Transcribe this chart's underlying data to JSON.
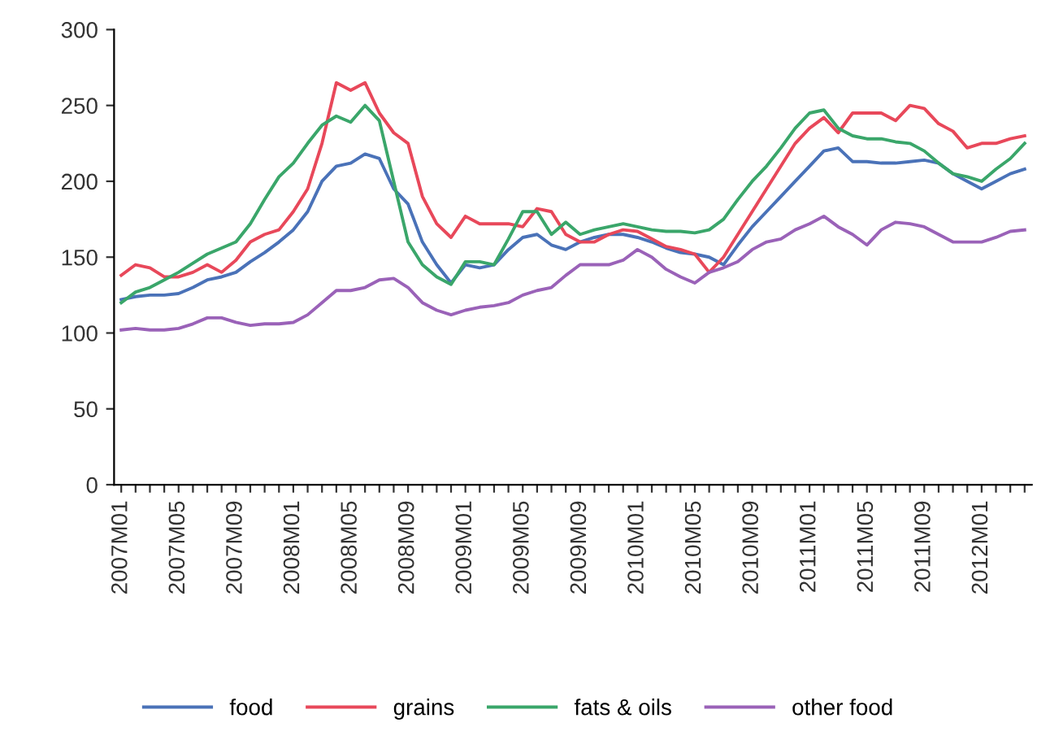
{
  "chart_data": {
    "type": "line",
    "categories": [
      "2007M01",
      null,
      null,
      null,
      "2007M05",
      null,
      null,
      null,
      "2007M09",
      null,
      null,
      null,
      "2008M01",
      null,
      null,
      null,
      "2008M05",
      null,
      null,
      null,
      "2008M09",
      null,
      null,
      null,
      "2009M01",
      null,
      null,
      null,
      "2009M05",
      null,
      null,
      null,
      "2009M09",
      null,
      null,
      null,
      "2010M01",
      null,
      null,
      null,
      "2010M05",
      null,
      null,
      null,
      "2010M09",
      null,
      null,
      null,
      "2011M01",
      null,
      null,
      null,
      "2011M05",
      null,
      null,
      null,
      "2011M09",
      null,
      null,
      null,
      "2012M01",
      null,
      null,
      null
    ],
    "series": [
      {
        "name": "food",
        "color": "#4a72b8",
        "values": [
          122,
          124,
          125,
          125,
          126,
          130,
          135,
          137,
          140,
          147,
          153,
          160,
          168,
          180,
          200,
          210,
          212,
          218,
          215,
          195,
          185,
          160,
          145,
          133,
          145,
          143,
          145,
          155,
          163,
          165,
          158,
          155,
          160,
          163,
          165,
          165,
          163,
          160,
          156,
          153,
          152,
          150,
          145,
          158,
          170,
          180,
          190,
          200,
          210,
          220,
          222,
          213,
          213,
          212,
          212,
          213,
          214,
          212,
          205,
          200,
          195,
          200,
          205,
          208
        ]
      },
      {
        "name": "grains",
        "color": "#e8485a",
        "values": [
          138,
          145,
          143,
          137,
          137,
          140,
          145,
          140,
          148,
          160,
          165,
          168,
          180,
          195,
          225,
          265,
          260,
          265,
          245,
          232,
          225,
          190,
          172,
          163,
          177,
          172,
          172,
          172,
          170,
          182,
          180,
          165,
          160,
          160,
          165,
          168,
          167,
          162,
          157,
          155,
          152,
          140,
          150,
          165,
          180,
          195,
          210,
          225,
          235,
          242,
          232,
          245,
          245,
          245,
          240,
          250,
          248,
          238,
          233,
          222,
          225,
          225,
          228,
          230
        ]
      },
      {
        "name": "fats & oils",
        "color": "#3aa66a",
        "values": [
          120,
          127,
          130,
          135,
          140,
          146,
          152,
          156,
          160,
          172,
          188,
          203,
          212,
          225,
          237,
          243,
          239,
          250,
          240,
          200,
          160,
          145,
          137,
          132,
          147,
          147,
          145,
          162,
          180,
          180,
          165,
          173,
          165,
          168,
          170,
          172,
          170,
          168,
          167,
          167,
          166,
          168,
          175,
          188,
          200,
          210,
          222,
          235,
          245,
          247,
          235,
          230,
          228,
          228,
          226,
          225,
          220,
          212,
          205,
          203,
          200,
          208,
          215,
          225
        ]
      },
      {
        "name": "other food",
        "color": "#9a62b8",
        "values": [
          102,
          103,
          102,
          102,
          103,
          106,
          110,
          110,
          107,
          105,
          106,
          106,
          107,
          112,
          120,
          128,
          128,
          130,
          135,
          136,
          130,
          120,
          115,
          112,
          115,
          117,
          118,
          120,
          125,
          128,
          130,
          138,
          145,
          145,
          145,
          148,
          155,
          150,
          142,
          137,
          133,
          140,
          143,
          147,
          155,
          160,
          162,
          168,
          172,
          177,
          170,
          165,
          158,
          168,
          173,
          172,
          170,
          165,
          160,
          160,
          160,
          163,
          167,
          168
        ]
      }
    ],
    "ylim": [
      0,
      300
    ],
    "yticks": [
      0,
      50,
      100,
      150,
      200,
      250,
      300
    ],
    "grid": false,
    "legend": "bottom",
    "marker": "none",
    "line_style": "solid"
  }
}
